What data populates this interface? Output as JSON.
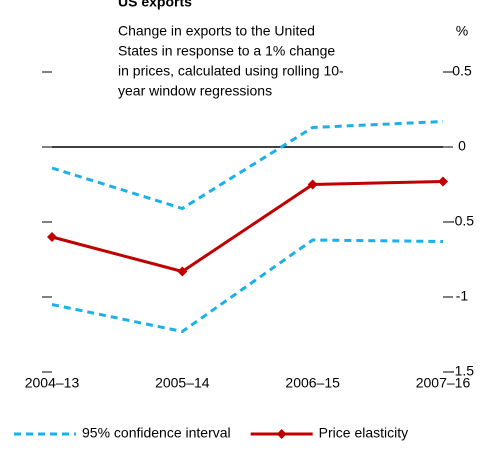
{
  "chart_data": {
    "type": "line",
    "title": "US exports",
    "subtitle": [
      "Change in exports to the United",
      "States in response to a 1% change",
      "in prices, calculated using rolling 10-",
      "year window regressions"
    ],
    "y_unit": "%",
    "categories": [
      "2004–13",
      "2005–14",
      "2006–15",
      "2007–16"
    ],
    "series": [
      {
        "name": "95% confidence interval",
        "color": "#1ab0e8",
        "dashed": true,
        "values": [
          -0.14,
          -0.41,
          0.13,
          0.17
        ]
      },
      {
        "name": "95% confidence interval",
        "color": "#1ab0e8",
        "dashed": true,
        "values": [
          -1.05,
          -1.23,
          -0.62,
          -0.63
        ],
        "legend": false
      },
      {
        "name": "Price elasticity",
        "color": "#c00000",
        "dashed": false,
        "marker": "diamond",
        "values": [
          -0.6,
          -0.83,
          -0.25,
          -0.23
        ]
      }
    ],
    "ylim": [
      -1.5,
      0.5
    ],
    "yticks": [
      -1.5,
      -1,
      -0.5,
      0,
      0.5
    ]
  }
}
